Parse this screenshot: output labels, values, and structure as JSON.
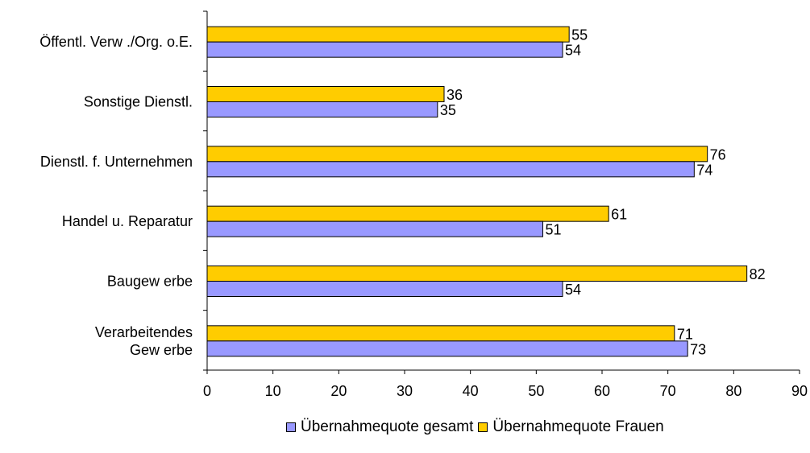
{
  "chart_data": {
    "type": "bar",
    "orientation": "horizontal",
    "categories": [
      [
        "Verarbeitendes",
        "Gew erbe"
      ],
      [
        "Baugew erbe"
      ],
      [
        "Handel u. Reparatur"
      ],
      [
        "Dienstl. f. Unternehmen"
      ],
      [
        "Sonstige Dienstl."
      ],
      [
        "Öffentl. Verw ./Org. o.E."
      ]
    ],
    "series": [
      {
        "name": "Übernahmequote gesamt",
        "color": "#9999ff",
        "values": [
          73,
          54,
          51,
          74,
          35,
          54
        ]
      },
      {
        "name": "Übernahmequote Frauen",
        "color": "#ffcc00",
        "values": [
          71,
          82,
          61,
          76,
          36,
          55
        ]
      }
    ],
    "xlim": [
      0,
      90
    ],
    "xticks": [
      0,
      10,
      20,
      30,
      40,
      50,
      60,
      70,
      80,
      90
    ],
    "grid": false,
    "legend_position": "bottom"
  }
}
